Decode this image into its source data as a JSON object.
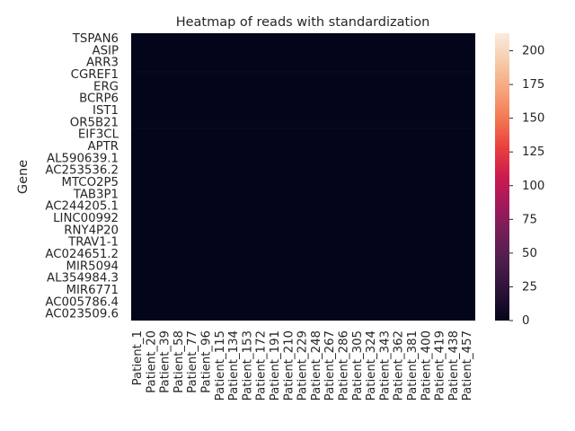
{
  "chart_data": {
    "type": "heatmap",
    "title": "Heatmap of reads with standardization",
    "xlabel": "",
    "ylabel": "Gene",
    "y_tick_labels": [
      "TSPAN6",
      "ASIP",
      "ARR3",
      "CGREF1",
      "ERG",
      "BCRP6",
      "IST1",
      "OR5B21",
      "EIF3CL",
      "APTR",
      "AL590639.1",
      "AC253536.2",
      "MTCO2P5",
      "TAB3P1",
      "AC244205.1",
      "LINC00992",
      "RNY4P20",
      "TRAV1-1",
      "AC024651.2",
      "MIR5094",
      "AL354984.3",
      "MIR6771",
      "AC005786.4",
      "AC023509.6"
    ],
    "x_tick_labels": [
      "Patient_1",
      "Patient_20",
      "Patient_39",
      "Patient_58",
      "Patient_77",
      "Patient_96",
      "Patient_115",
      "Patient_134",
      "Patient_153",
      "Patient_172",
      "Patient_191",
      "Patient_210",
      "Patient_229",
      "Patient_248",
      "Patient_267",
      "Patient_286",
      "Patient_305",
      "Patient_324",
      "Patient_343",
      "Patient_362",
      "Patient_381",
      "Patient_400",
      "Patient_419",
      "Patient_438",
      "Patient_457"
    ],
    "colorbar": {
      "ticks": [
        0,
        25,
        50,
        75,
        100,
        125,
        150,
        175,
        200
      ],
      "tick_labels": [
        "0",
        "25",
        "50",
        "75",
        "100",
        "125",
        "150",
        "175",
        "200"
      ],
      "min": 0,
      "max": 213,
      "colormap": "rocket",
      "colors": [
        "#03051a",
        "#2b1237",
        "#4c1d4b",
        "#701f57",
        "#a11a5b",
        "#cb1b4f",
        "#e83f3f",
        "#f37651",
        "#f6a47b",
        "#f6cbaa",
        "#faebdd"
      ]
    },
    "values_summary": "All cells near 0 (nearly uniform darkest color)"
  }
}
